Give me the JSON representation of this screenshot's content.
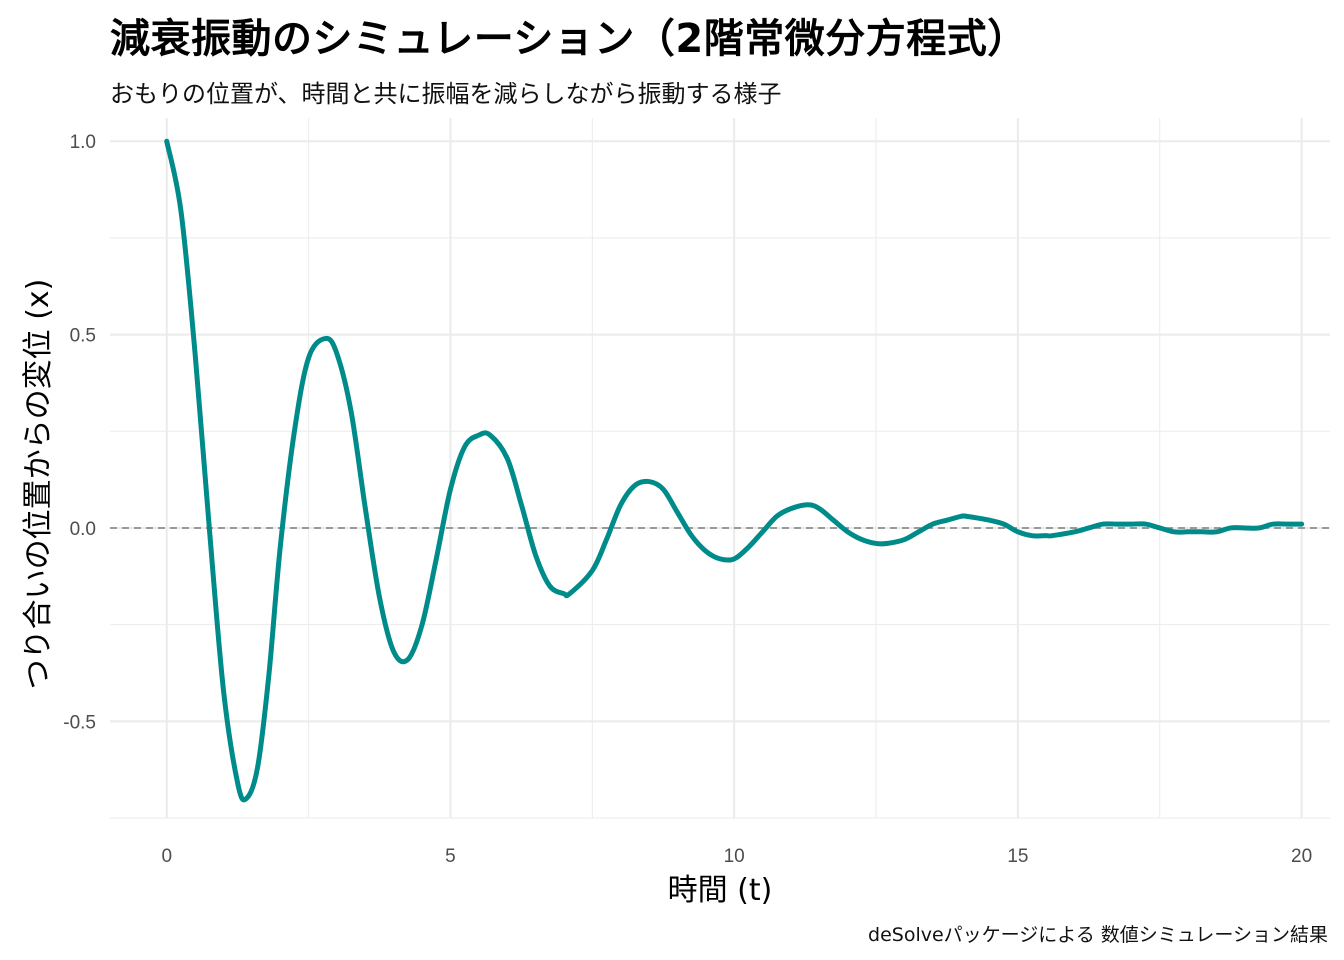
{
  "title": "減衰振動のシミュレーション（2階常微分方程式）",
  "subtitle": "おもりの位置が、時間と共に振幅を減らしながら振動する様子",
  "caption": "deSolveパッケージによる 数値シミュレーション結果",
  "colors": {
    "line": "#008b8b",
    "grid": "#ebebeb",
    "zero_line": "#808080",
    "tick_text": "#4d4d4d"
  },
  "chart_data": {
    "type": "line",
    "title": "減衰振動のシミュレーション（2階常微分方程式）",
    "subtitle": "おもりの位置が、時間と共に振幅を減らしながら振動する様子",
    "xlabel": "時間 (t)",
    "ylabel": "つり合いの位置からの変位 (x)",
    "xlim": [
      -1,
      20.5
    ],
    "ylim": [
      -0.75,
      1.06
    ],
    "x_ticks": [
      0,
      5,
      10,
      15,
      20
    ],
    "x_tick_labels": [
      "0",
      "5",
      "10",
      "15",
      "20"
    ],
    "y_ticks": [
      1.0,
      0.5,
      0.0,
      -0.5
    ],
    "y_tick_labels": [
      "1.0",
      "0.5",
      "0.0",
      "-0.5"
    ],
    "grid": true,
    "reference_line": {
      "y": 0,
      "style": "dashed"
    },
    "series": [
      {
        "x": [
          0,
          0.25,
          0.5,
          0.75,
          1.0,
          1.25,
          1.4,
          1.6,
          1.8,
          2.0,
          2.25,
          2.5,
          2.8,
          3.0,
          3.25,
          3.5,
          3.75,
          4.0,
          4.25,
          4.5,
          4.75,
          5.0,
          5.25,
          5.5,
          5.7,
          6.0,
          6.25,
          6.5,
          6.75,
          7.0,
          7.1,
          7.5,
          7.75,
          8.0,
          8.25,
          8.5,
          8.75,
          9.0,
          9.25,
          9.5,
          9.75,
          10.0,
          10.25,
          10.5,
          10.75,
          11.0,
          11.3,
          11.5,
          11.75,
          12.0,
          12.25,
          12.5,
          12.7,
          13.0,
          13.25,
          13.5,
          13.75,
          14.0,
          14.1,
          14.5,
          14.75,
          15.0,
          15.25,
          15.5,
          15.6,
          16.0,
          16.25,
          16.5,
          16.75,
          17.0,
          17.25,
          17.5,
          17.75,
          18.0,
          18.25,
          18.5,
          18.75,
          19.0,
          19.25,
          19.5,
          19.75,
          20.0
        ],
        "values": [
          1.0,
          0.82,
          0.45,
          0.0,
          -0.42,
          -0.66,
          -0.7,
          -0.62,
          -0.38,
          -0.05,
          0.25,
          0.44,
          0.49,
          0.45,
          0.3,
          0.05,
          -0.18,
          -0.32,
          -0.34,
          -0.25,
          -0.08,
          0.1,
          0.21,
          0.24,
          0.24,
          0.18,
          0.06,
          -0.07,
          -0.15,
          -0.17,
          -0.17,
          -0.11,
          -0.03,
          0.06,
          0.11,
          0.12,
          0.1,
          0.04,
          -0.02,
          -0.06,
          -0.08,
          -0.08,
          -0.05,
          -0.01,
          0.03,
          0.05,
          0.06,
          0.05,
          0.02,
          -0.01,
          -0.03,
          -0.04,
          -0.04,
          -0.03,
          -0.01,
          0.01,
          0.02,
          0.03,
          0.03,
          0.02,
          0.01,
          -0.01,
          -0.02,
          -0.02,
          -0.02,
          -0.01,
          0.0,
          0.01,
          0.01,
          0.01,
          0.01,
          0.0,
          -0.01,
          -0.01,
          -0.01,
          -0.01,
          0.0,
          0.0,
          0.0,
          0.01,
          0.01,
          0.01
        ]
      }
    ]
  }
}
